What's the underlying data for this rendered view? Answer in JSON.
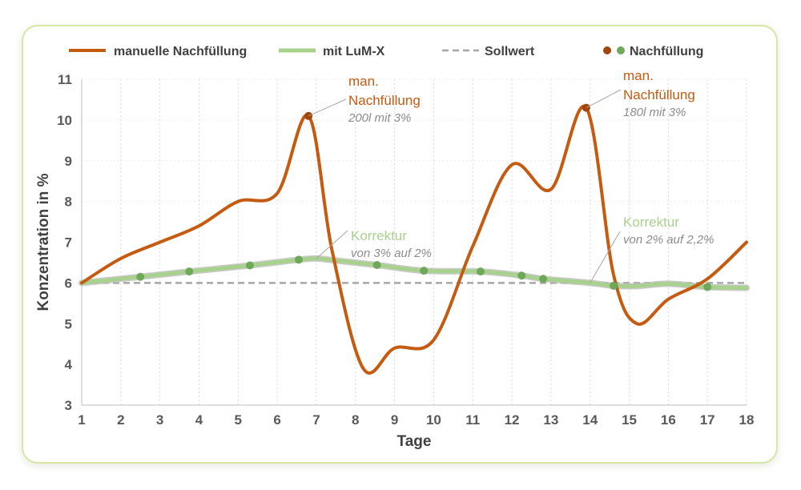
{
  "colors": {
    "manual": "#c55a11",
    "lumx": "#a9d18e",
    "lumx_edge": "#bdbdbd",
    "target": "#a6a6a6",
    "refill_manual": "#a0450e",
    "refill_lumx": "#70a85a",
    "grid": "#d9d9d9",
    "card_border": "#d6e6a4"
  },
  "chart_data": {
    "type": "line",
    "xlabel": "Tage",
    "ylabel": "Konzentration in %",
    "x_ticks": [
      1,
      2,
      3,
      4,
      5,
      6,
      7,
      8,
      9,
      10,
      11,
      12,
      13,
      14,
      15,
      16,
      17,
      18
    ],
    "y_ticks": [
      3,
      4,
      5,
      6,
      7,
      8,
      9,
      10,
      11
    ],
    "xlim": [
      1,
      18
    ],
    "ylim": [
      3,
      11
    ],
    "grid": "vertical dotted",
    "legend_position": "top",
    "legend": {
      "manual": "manuelle Nachfüllung",
      "lumx": "mit LuM-X",
      "target": "Sollwert",
      "refill": "Nachfüllung"
    },
    "series": [
      {
        "name": "manuelle Nachfüllung",
        "style": "smooth",
        "x": [
          1,
          2,
          3,
          4,
          5,
          6,
          6.8,
          7.4,
          8.2,
          9,
          10,
          11,
          12,
          13,
          13.9,
          14.6,
          15.2,
          16,
          17,
          18
        ],
        "y": [
          6.0,
          6.6,
          7.0,
          7.4,
          8.0,
          8.2,
          10.1,
          6.8,
          3.9,
          4.4,
          4.6,
          6.9,
          8.9,
          8.3,
          10.3,
          6.2,
          5.0,
          5.6,
          6.1,
          7.0
        ]
      },
      {
        "name": "mit LuM-X",
        "style": "smooth",
        "x": [
          1,
          2.5,
          3.75,
          5.3,
          6.55,
          7,
          7.5,
          8.55,
          9.75,
          11.2,
          12.25,
          12.8,
          14,
          14.6,
          15.2,
          16,
          17,
          18
        ],
        "y": [
          6.0,
          6.15,
          6.28,
          6.43,
          6.57,
          6.6,
          6.55,
          6.44,
          6.3,
          6.28,
          6.18,
          6.1,
          6.0,
          5.93,
          5.92,
          5.98,
          5.9,
          5.88
        ]
      },
      {
        "name": "Sollwert",
        "style": "dashed",
        "x": [
          1,
          18
        ],
        "y": [
          6,
          6
        ]
      }
    ],
    "refill_points": {
      "manual": [
        {
          "x": 6.8,
          "y": 10.1
        },
        {
          "x": 13.9,
          "y": 10.3
        }
      ],
      "lumx": [
        {
          "x": 2.5,
          "y": 6.15
        },
        {
          "x": 3.75,
          "y": 6.28
        },
        {
          "x": 5.3,
          "y": 6.43
        },
        {
          "x": 6.55,
          "y": 6.57
        },
        {
          "x": 8.55,
          "y": 6.44
        },
        {
          "x": 9.75,
          "y": 6.3
        },
        {
          "x": 11.2,
          "y": 6.28
        },
        {
          "x": 12.25,
          "y": 6.18
        },
        {
          "x": 12.8,
          "y": 6.1
        },
        {
          "x": 14.6,
          "y": 5.93
        },
        {
          "x": 17,
          "y": 5.9
        }
      ]
    },
    "annotations": [
      {
        "title_lines": [
          "man.",
          "Nachfüllung"
        ],
        "subtitle": "200l mit 3%",
        "target": {
          "x": 6.8,
          "y": 10.1
        },
        "kind": "manual"
      },
      {
        "title_lines": [
          "man.",
          "Nachfüllung"
        ],
        "subtitle": "180l mit 3%",
        "target": {
          "x": 13.9,
          "y": 10.3
        },
        "kind": "manual"
      },
      {
        "title_lines": [
          "Korrektur"
        ],
        "subtitle": "von 3% auf 2%",
        "target": {
          "x": 7,
          "y": 6.6
        },
        "kind": "lumx"
      },
      {
        "title_lines": [
          "Korrektur"
        ],
        "subtitle": "von 2% auf 2,2%",
        "target": {
          "x": 14,
          "y": 6.0
        },
        "kind": "lumx"
      }
    ]
  }
}
